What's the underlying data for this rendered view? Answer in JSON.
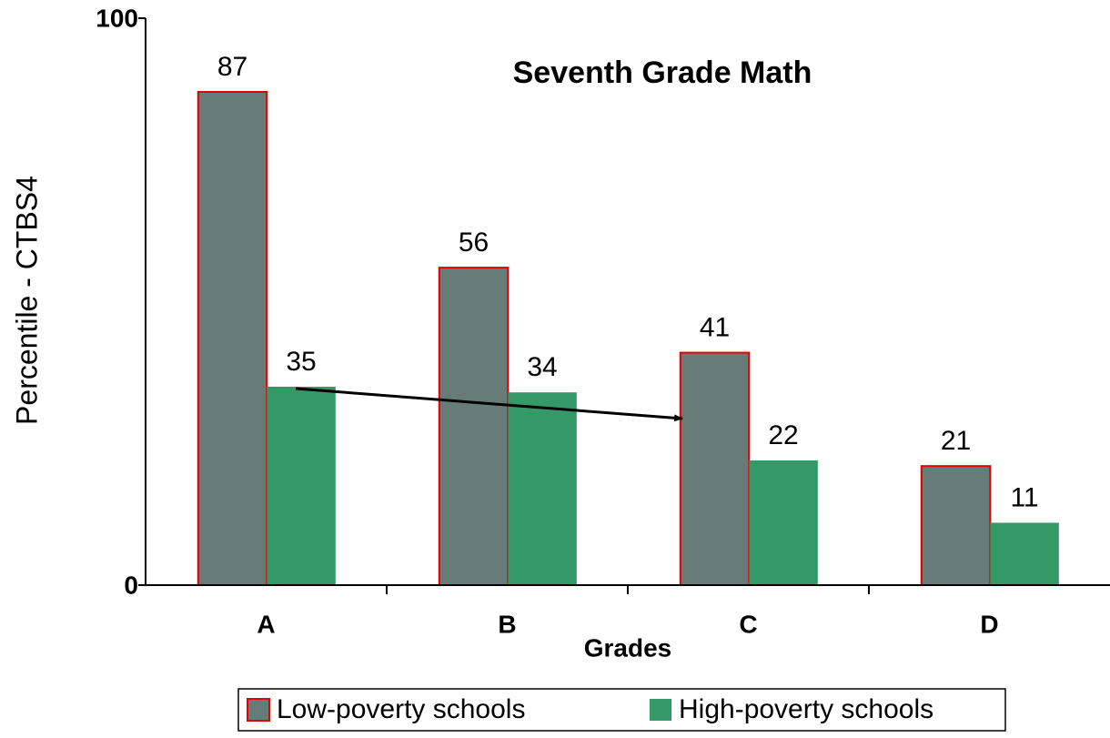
{
  "chart_data": {
    "type": "bar",
    "title": "Seventh Grade Math",
    "x_label": "Grades",
    "y_label": "Percentile - CTBS4",
    "categories": [
      "A",
      "B",
      "C",
      "D"
    ],
    "series": [
      {
        "name": "Low-poverty schools",
        "color": "#677b78",
        "edgecolor": "#e00000",
        "values": [
          87,
          56,
          41,
          21
        ]
      },
      {
        "name": "High-poverty schools",
        "color": "#339966",
        "values": [
          35,
          34,
          22,
          11
        ]
      }
    ],
    "ylim": [
      0,
      100
    ],
    "yticks": [
      0,
      100
    ],
    "grid": false,
    "legend": "bottom"
  }
}
